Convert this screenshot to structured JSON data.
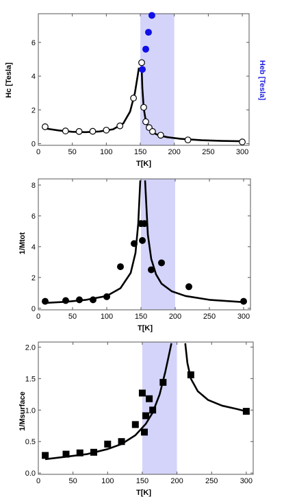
{
  "colors": {
    "band": "#d4d4fa",
    "curve": "#000000",
    "marker": "#000000",
    "heb_marker": "#1010e8",
    "heb_axis": "#2020e0"
  },
  "chart_data": [
    {
      "type": "scatter",
      "xlabel": "T[K]",
      "ylabel": "Hc [Tesla]",
      "ylabel_right": "Heb [Tesla]",
      "xlim": [
        0,
        310
      ],
      "ylim": [
        -0.1,
        7.7
      ],
      "xticks": [
        0,
        50,
        100,
        150,
        200,
        250,
        300
      ],
      "yticks": [
        0,
        2,
        4,
        6
      ],
      "shaded_region": [
        150,
        200
      ],
      "series": [
        {
          "name": "Hc",
          "marker": "open-circle",
          "points": [
            [
              10,
              1.0
            ],
            [
              40,
              0.75
            ],
            [
              60,
              0.72
            ],
            [
              80,
              0.73
            ],
            [
              100,
              0.8
            ],
            [
              120,
              1.05
            ],
            [
              140,
              2.7
            ],
            [
              152,
              4.8
            ],
            [
              155,
              2.15
            ],
            [
              158,
              1.3
            ],
            [
              163,
              0.95
            ],
            [
              168,
              0.72
            ],
            [
              180,
              0.5
            ],
            [
              220,
              0.22
            ],
            [
              300,
              0.1
            ]
          ]
        },
        {
          "name": "Heb",
          "marker": "filled-circle",
          "points": [
            [
              153,
              4.4
            ],
            [
              158,
              5.6
            ],
            [
              162,
              6.6
            ],
            [
              167,
              7.6
            ]
          ]
        }
      ],
      "fit_curves": [
        {
          "x": [
            10,
            30,
            50,
            70,
            90,
            110,
            125,
            135,
            142,
            146,
            148
          ],
          "y": [
            0.9,
            0.78,
            0.7,
            0.68,
            0.72,
            0.85,
            1.2,
            1.9,
            3.0,
            4.0,
            4.5
          ]
        },
        {
          "x": [
            152,
            153,
            155,
            158,
            162,
            166,
            170,
            178,
            190,
            210,
            240,
            270,
            300
          ],
          "y": [
            4.5,
            3.3,
            2.1,
            1.35,
            0.95,
            0.75,
            0.62,
            0.48,
            0.38,
            0.28,
            0.2,
            0.16,
            0.14
          ]
        }
      ]
    },
    {
      "type": "scatter",
      "xlabel": "T[K]",
      "ylabel": "1/Mtot",
      "xlim": [
        0,
        310
      ],
      "ylim": [
        -0.1,
        8.4
      ],
      "xticks": [
        0,
        50,
        100,
        150,
        200,
        250,
        300
      ],
      "yticks": [
        0,
        2,
        4,
        6,
        8
      ],
      "shaded_region": [
        150,
        200
      ],
      "series": [
        {
          "name": "1/Mtot",
          "marker": "filled-circle",
          "points": [
            [
              10,
              0.45
            ],
            [
              40,
              0.5
            ],
            [
              60,
              0.55
            ],
            [
              80,
              0.55
            ],
            [
              100,
              0.75
            ],
            [
              120,
              2.7
            ],
            [
              140,
              4.2
            ],
            [
              150,
              5.5
            ],
            [
              152,
              4.4
            ],
            [
              155,
              5.5
            ],
            [
              165,
              2.5
            ],
            [
              180,
              2.95
            ],
            [
              220,
              1.4
            ],
            [
              300,
              0.45
            ]
          ]
        }
      ],
      "fit_curves": [
        {
          "x": [
            10,
            40,
            70,
            100,
            120,
            135,
            142,
            146,
            149
          ],
          "y": [
            0.35,
            0.42,
            0.55,
            0.8,
            1.3,
            2.3,
            3.6,
            5.5,
            8.3
          ]
        },
        {
          "x": [
            156,
            160,
            165,
            172,
            180,
            195,
            215,
            250,
            300
          ],
          "y": [
            8.3,
            4.8,
            3.2,
            2.2,
            1.6,
            1.1,
            0.8,
            0.55,
            0.4
          ]
        }
      ]
    },
    {
      "type": "scatter",
      "xlabel": "T[K]",
      "ylabel": "1/Msurface",
      "xlim": [
        0,
        310
      ],
      "ylim": [
        -0.02,
        2.08
      ],
      "xticks": [
        0,
        50,
        100,
        150,
        200,
        250,
        300
      ],
      "yticks": [
        0.0,
        0.5,
        1.0,
        1.5,
        2.0
      ],
      "ytick_labels": [
        "0.0",
        "0.5",
        "1.0",
        "1.5",
        "2.0"
      ],
      "shaded_region": [
        150,
        200
      ],
      "series": [
        {
          "name": "1/Msurface",
          "marker": "filled-square",
          "points": [
            [
              10,
              0.28
            ],
            [
              40,
              0.3
            ],
            [
              60,
              0.32
            ],
            [
              80,
              0.33
            ],
            [
              100,
              0.46
            ],
            [
              120,
              0.5
            ],
            [
              140,
              0.77
            ],
            [
              150,
              1.27
            ],
            [
              153,
              0.65
            ],
            [
              155,
              0.91
            ],
            [
              160,
              1.18
            ],
            [
              165,
              1.0
            ],
            [
              180,
              1.44
            ],
            [
              220,
              1.56
            ],
            [
              300,
              0.98
            ]
          ]
        }
      ],
      "fit_curves": [
        {
          "x": [
            10,
            40,
            70,
            100,
            120,
            140,
            155,
            165,
            175,
            183,
            188,
            192
          ],
          "y": [
            0.22,
            0.26,
            0.3,
            0.38,
            0.46,
            0.6,
            0.78,
            0.96,
            1.25,
            1.6,
            1.85,
            2.06
          ]
        },
        {
          "x": [
            212,
            215,
            220,
            230,
            245,
            265,
            285,
            300
          ],
          "y": [
            2.06,
            1.75,
            1.5,
            1.3,
            1.16,
            1.07,
            1.02,
            0.98
          ]
        }
      ]
    }
  ]
}
